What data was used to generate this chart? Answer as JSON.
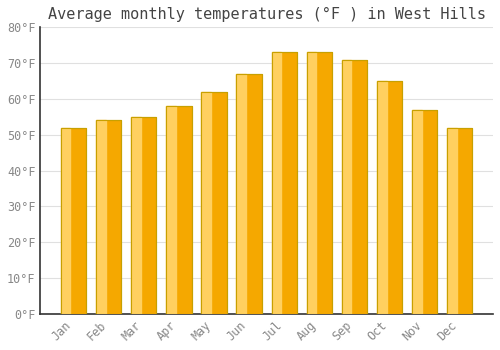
{
  "title": "Average monthly temperatures (°F ) in West Hills",
  "months": [
    "Jan",
    "Feb",
    "Mar",
    "Apr",
    "May",
    "Jun",
    "Jul",
    "Aug",
    "Sep",
    "Oct",
    "Nov",
    "Dec"
  ],
  "values": [
    52,
    54,
    55,
    58,
    62,
    67,
    73,
    73,
    71,
    65,
    57,
    52
  ],
  "bar_color_dark": "#F5A800",
  "bar_color_light": "#FFD060",
  "bar_edge_color": "#C8A000",
  "background_color": "#FFFFFF",
  "plot_bg_color": "#FFFFFF",
  "grid_color": "#E0E0E0",
  "ylim": [
    0,
    80
  ],
  "ytick_step": 10,
  "title_fontsize": 11,
  "tick_fontsize": 8.5,
  "font_family": "monospace",
  "title_color": "#444444",
  "tick_color": "#888888",
  "spine_color": "#333333"
}
